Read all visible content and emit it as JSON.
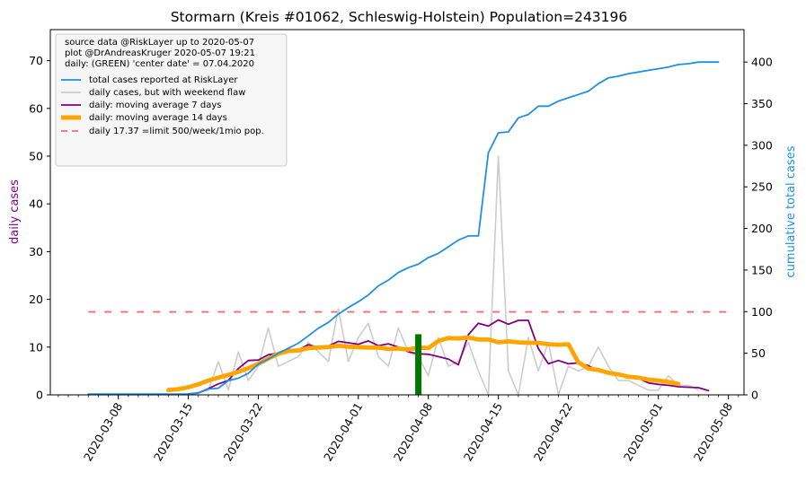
{
  "chart_data": {
    "type": "line",
    "title": "Stormarn (Kreis #01062, Schleswig-Holstein) Population=243196",
    "ylabel_left": "daily cases",
    "ylabel_right": "cumulative total cases",
    "ylim_left": [
      0,
      76.5
    ],
    "ylim_right": [
      0,
      439
    ],
    "left_ticks": [
      0,
      10,
      20,
      30,
      40,
      50,
      60,
      70
    ],
    "right_ticks": [
      0,
      50,
      100,
      150,
      200,
      250,
      300,
      350,
      400
    ],
    "x_ticks": [
      "2020-03-08",
      "2020-03-15",
      "2020-03-22",
      "2020-04-01",
      "2020-04-08",
      "2020-04-15",
      "2020-04-22",
      "2020-05-01",
      "2020-05-08"
    ],
    "x_tick_days": [
      7,
      14,
      21,
      31,
      38,
      45,
      52,
      61,
      68
    ],
    "colors": {
      "total": "#1f8fe6",
      "daily": "#cccccc",
      "ma7": "#800080",
      "ma14": "#ffa500",
      "limit": "#f07070",
      "center": "#007700",
      "left_label": "#800080",
      "right_label": "#1f8fe6"
    },
    "info_lines": [
      "source data @RiskLayer up to 2020-05-07",
      "plot @DrAndreasKruger 2020-05-07 19:21",
      "daily: (GREEN) 'center date' = 07.04.2020"
    ],
    "legend": [
      "total cases reported at RiskLayer",
      "daily cases, but with weekend flaw",
      "daily: moving average 7 days",
      "daily: moving average 14 days",
      "daily 17.37 =limit 500/week/1mio pop."
    ],
    "center_date": "2020-04-07",
    "center_bar": {
      "day": 37,
      "value": 12.7
    },
    "limit": {
      "value": 17.37,
      "day_start": 4,
      "day_end": 68
    },
    "series": [
      {
        "name": "total cases reported at RiskLayer",
        "axis": "right",
        "days": [
          4,
          5,
          6,
          7,
          8,
          9,
          10,
          11,
          12,
          13,
          14,
          15,
          16,
          17,
          18,
          19,
          20,
          21,
          22,
          23,
          24,
          25,
          26,
          27,
          28,
          29,
          30,
          31,
          32,
          33,
          34,
          35,
          36,
          37,
          38,
          39,
          40,
          41,
          42,
          43,
          44,
          45,
          46,
          47,
          48,
          49,
          50,
          51,
          52,
          53,
          54,
          55,
          56,
          57,
          58,
          59,
          60,
          61,
          62,
          63,
          64,
          65,
          66,
          67
        ],
        "values": [
          1,
          1,
          1,
          1,
          1,
          1,
          1,
          1,
          1,
          1,
          1,
          2,
          7,
          8,
          17,
          20,
          26,
          37,
          43,
          50,
          56,
          62,
          71,
          80,
          87,
          97,
          105,
          112,
          120,
          131,
          138,
          147,
          153,
          157,
          165,
          170,
          178,
          186,
          191,
          191,
          291,
          315,
          316,
          333,
          337,
          347,
          347,
          353,
          357,
          361,
          365,
          374,
          381,
          383,
          386,
          388,
          390,
          392,
          394,
          397,
          398,
          400,
          400,
          400
        ]
      },
      {
        "name": "daily cases, but with weekend flaw",
        "axis": "left",
        "days": [
          14,
          15,
          16,
          17,
          18,
          19,
          20,
          21,
          22,
          23,
          24,
          25,
          26,
          27,
          28,
          29,
          30,
          31,
          32,
          33,
          34,
          35,
          36,
          37,
          38,
          39,
          40,
          41,
          42,
          43,
          44,
          45,
          46,
          47,
          48,
          49,
          50,
          51,
          52,
          53,
          54,
          55,
          56,
          57,
          58,
          59,
          60,
          61,
          62,
          63,
          64,
          65
        ],
        "values": [
          0,
          0.5,
          1,
          7,
          1,
          9,
          3,
          6,
          14,
          6,
          7,
          8,
          11,
          9,
          7,
          18,
          7,
          12,
          15,
          8,
          6,
          14,
          9,
          8,
          4,
          12,
          6,
          7,
          11,
          5,
          0,
          50,
          5,
          0,
          12,
          5,
          11,
          0,
          6,
          5,
          6,
          10,
          6,
          3,
          3,
          2,
          1,
          1,
          4,
          2,
          2,
          1
        ]
      },
      {
        "name": "daily: moving average 7 days",
        "axis": "left",
        "days": [
          14,
          15,
          16,
          17,
          18,
          19,
          20,
          21,
          22,
          23,
          24,
          25,
          26,
          27,
          28,
          29,
          30,
          31,
          32,
          33,
          34,
          35,
          36,
          37,
          38,
          39,
          40,
          41,
          42,
          43,
          44,
          45,
          46,
          47,
          48,
          49,
          50,
          51,
          52,
          53,
          54,
          55,
          56,
          57,
          58,
          59,
          60,
          61,
          62,
          63,
          64,
          65,
          66
        ],
        "values": [
          0.2,
          0.4,
          1.3,
          2.3,
          3.0,
          5.5,
          7.2,
          7.3,
          8.4,
          8.7,
          9.5,
          9.4,
          10.5,
          9.9,
          10.2,
          11.2,
          10.9,
          10.6,
          11.3,
          10.3,
          10.7,
          10.0,
          9.0,
          8.6,
          8.5,
          8.0,
          7.5,
          6.3,
          12.6,
          15.0,
          14.4,
          15.7,
          14.8,
          15.6,
          15.6,
          9.7,
          6.5,
          7.2,
          6.5,
          6.7,
          6.1,
          5.0,
          4.8,
          4.5,
          4.0,
          3.5,
          2.5,
          2.2,
          2.0,
          1.7,
          1.6,
          1.5,
          0.9
        ]
      },
      {
        "name": "daily: moving average 14 days",
        "axis": "left",
        "days": [
          12,
          13,
          14,
          15,
          16,
          17,
          18,
          19,
          20,
          21,
          22,
          23,
          24,
          25,
          26,
          27,
          28,
          29,
          30,
          31,
          32,
          33,
          34,
          35,
          36,
          37,
          38,
          39,
          40,
          41,
          42,
          43,
          44,
          45,
          46,
          47,
          48,
          49,
          50,
          51,
          52,
          53,
          54,
          55,
          56,
          57,
          58,
          59,
          60,
          61,
          62,
          63
        ],
        "values": [
          1.0,
          1.2,
          1.6,
          2.2,
          3.0,
          3.6,
          4.2,
          4.8,
          5.6,
          6.5,
          7.6,
          8.6,
          9.2,
          9.3,
          9.8,
          9.9,
          10.0,
          10.3,
          10.1,
          10.0,
          9.9,
          9.9,
          9.6,
          9.7,
          9.5,
          9.9,
          9.8,
          11.3,
          11.9,
          11.8,
          12.0,
          11.6,
          11.6,
          11.0,
          11.2,
          11.0,
          10.9,
          10.9,
          10.6,
          10.5,
          10.6,
          6.8,
          5.5,
          5.2,
          4.6,
          4.3,
          3.8,
          3.6,
          3.2,
          3.0,
          2.7,
          2.3
        ]
      }
    ]
  }
}
